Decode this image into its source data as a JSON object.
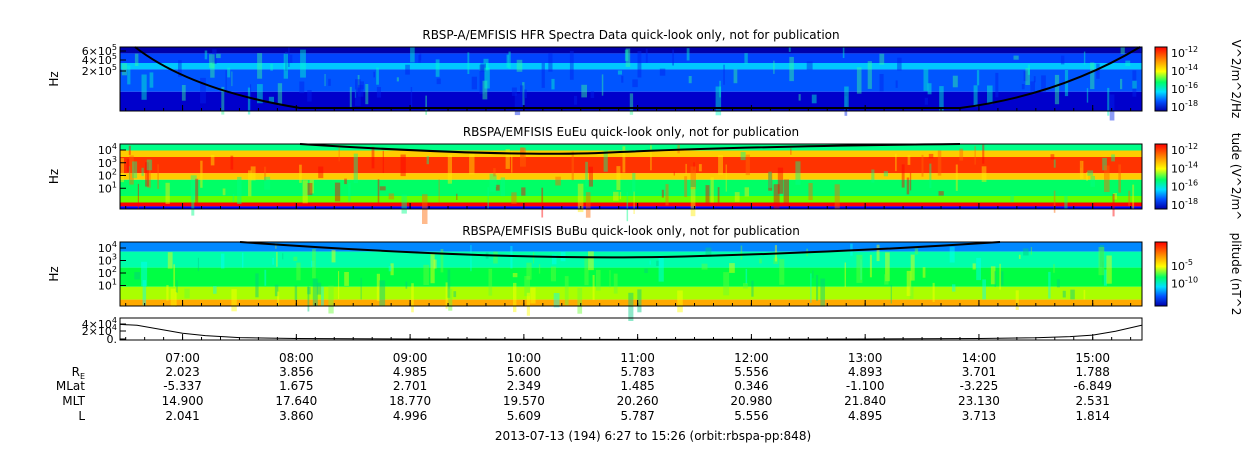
{
  "chart_data": {
    "type": "heatmap",
    "panels": [
      {
        "id": "hfr",
        "title": "RBSP-A/EMFISIS  HFR Spectra Data quick-look only, not for publication",
        "ylabel": "Hz",
        "ytick_labels": [
          {
            "mant": "6×10",
            "exp": "5"
          },
          {
            "mant": "4×10",
            "exp": "5"
          },
          {
            "mant": "2×10",
            "exp": "5"
          }
        ],
        "ytick_values": [
          600000,
          400000,
          200000
        ],
        "colorbar_label": "V^2/m^2/Hz",
        "colorbar_ticks": [
          {
            "mant": "10",
            "exp": "-12"
          },
          {
            "mant": "10",
            "exp": "-14"
          },
          {
            "mant": "10",
            "exp": "-16"
          },
          {
            "mant": "10",
            "exp": "-18"
          }
        ]
      },
      {
        "id": "eueu",
        "title": "RBSPA/EMFISIS  EuEu quick-look only, not for publication",
        "ylabel": "Hz",
        "ytick_labels": [
          {
            "mant": "10",
            "exp": "4"
          },
          {
            "mant": "10",
            "exp": "3"
          },
          {
            "mant": "10",
            "exp": "2"
          },
          {
            "mant": "10",
            "exp": "1"
          }
        ],
        "colorbar_label": "tude (V^2/m^",
        "colorbar_ticks": [
          {
            "mant": "10",
            "exp": "-12"
          },
          {
            "mant": "10",
            "exp": "-14"
          },
          {
            "mant": "10",
            "exp": "-16"
          },
          {
            "mant": "10",
            "exp": "-18"
          }
        ]
      },
      {
        "id": "bubu",
        "title": "RBSPA/EMFISIS  BuBu quick-look only, not for publication",
        "ylabel": "Hz",
        "ytick_labels": [
          {
            "mant": "10",
            "exp": "4"
          },
          {
            "mant": "10",
            "exp": "3"
          },
          {
            "mant": "10",
            "exp": "2"
          },
          {
            "mant": "10",
            "exp": "1"
          }
        ],
        "colorbar_label": "plitude (nT^2",
        "colorbar_ticks": [
          {
            "mant": "10",
            "exp": "-5"
          },
          {
            "mant": "10",
            "exp": "-10"
          }
        ]
      },
      {
        "id": "line",
        "type": "line",
        "ytick_labels": [
          {
            "mant": "4×10",
            "exp": "4"
          },
          {
            "mant": "2×10",
            "exp": "4"
          },
          {
            "mant": "0.",
            "exp": ""
          }
        ],
        "ylim": [
          0,
          45000
        ],
        "x_hours": [
          6.45,
          6.6,
          6.8,
          7.0,
          7.2,
          7.5,
          8.0,
          9.0,
          10.0,
          11.0,
          12.0,
          13.0,
          14.0,
          14.5,
          14.8,
          15.0,
          15.2,
          15.43
        ],
        "values": [
          32000,
          30000,
          22000,
          14000,
          9000,
          5000,
          3000,
          2000,
          1500,
          1200,
          1500,
          2000,
          3000,
          4500,
          7000,
          10000,
          18000,
          30000
        ]
      }
    ],
    "x_range_hours": [
      6.45,
      15.4333
    ],
    "time_ticks": [
      "07:00",
      "08:00",
      "09:00",
      "10:00",
      "11:00",
      "12:00",
      "13:00",
      "14:00",
      "15:00"
    ],
    "time_tick_hours": [
      7,
      8,
      9,
      10,
      11,
      12,
      13,
      14,
      15
    ],
    "ephemeris": {
      "rows": [
        {
          "label": "R",
          "sub": "E",
          "values": [
            "2.023",
            "3.856",
            "4.985",
            "5.600",
            "5.783",
            "5.556",
            "4.893",
            "3.701",
            "1.788"
          ]
        },
        {
          "label": "MLat",
          "sub": "",
          "values": [
            "-5.337",
            "1.675",
            "2.701",
            "2.349",
            "1.485",
            "0.346",
            "-1.100",
            "-3.225",
            "-6.849"
          ]
        },
        {
          "label": "MLT",
          "sub": "",
          "values": [
            "14.900",
            "17.640",
            "18.770",
            "19.570",
            "20.260",
            "20.980",
            "21.840",
            "23.130",
            "2.531"
          ]
        },
        {
          "label": "L",
          "sub": "",
          "values": [
            "2.041",
            "3.860",
            "4.996",
            "5.609",
            "5.787",
            "5.556",
            "4.895",
            "3.713",
            "1.814"
          ]
        }
      ]
    },
    "footer": "2013-07-13 (194) 6:27 to 15:26 (orbit:rbspa-pp:848)"
  }
}
